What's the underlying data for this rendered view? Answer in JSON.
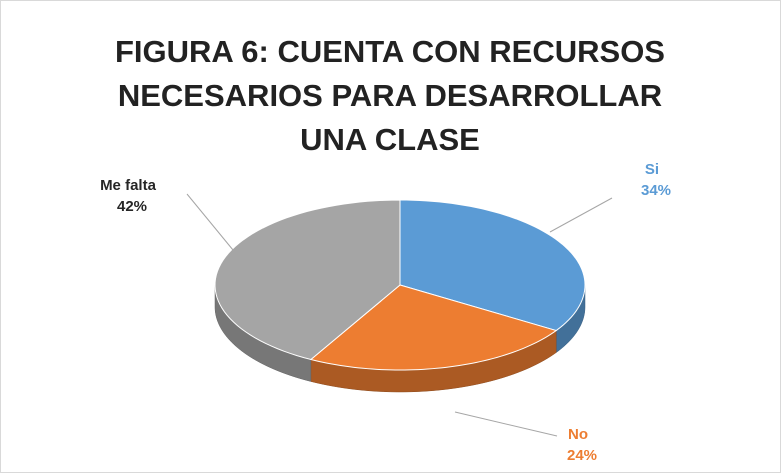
{
  "chart_data": {
    "type": "pie",
    "title": "FIGURA 6: CUENTA CON RECURSOS NECESARIOS PARA DESARROLLAR UNA CLASE",
    "categories": [
      "Si",
      "No",
      "Me falta"
    ],
    "values": [
      34,
      24,
      42
    ],
    "value_labels": [
      "34%",
      "24%",
      "42%"
    ],
    "colors": [
      "#5b9bd5",
      "#ed7d31",
      "#a5a5a5"
    ]
  }
}
